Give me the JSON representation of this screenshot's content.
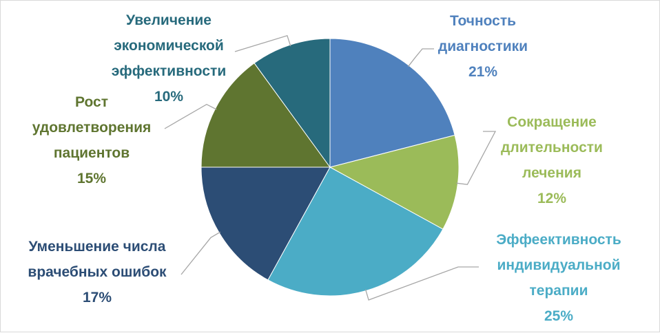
{
  "chart_data": {
    "type": "pie",
    "title": "",
    "categories": [
      "Точность диагностики",
      "Сокращение длительности лечения",
      "Эффеективность индивидуальной терапии",
      "Уменьшение числа врачебных ошибок",
      "Рост удовлетворения пациентов",
      "Увеличение экономической эффективности"
    ],
    "values": [
      21,
      12,
      25,
      17,
      15,
      10
    ],
    "value_labels": [
      "21%",
      "12%",
      "25%",
      "17%",
      "15%",
      "10%"
    ],
    "label_lines": [
      [
        "Точность",
        "диагностики"
      ],
      [
        "Сокращение",
        "длительности",
        "лечения"
      ],
      [
        "Эффеективность",
        "индивидуальной",
        "терапии"
      ],
      [
        "Уменьшение числа",
        "врачебных ошибок"
      ],
      [
        "Рост",
        "удовлетворения",
        "пациентов"
      ],
      [
        "Увеличение",
        "экономической",
        "эффективности"
      ]
    ],
    "colors": [
      "#4f81bd",
      "#9bbb59",
      "#4bacc6",
      "#2c4d75",
      "#5f7530",
      "#276a7c"
    ],
    "legend": "none",
    "data_labels": "outside-with-leader-lines"
  }
}
